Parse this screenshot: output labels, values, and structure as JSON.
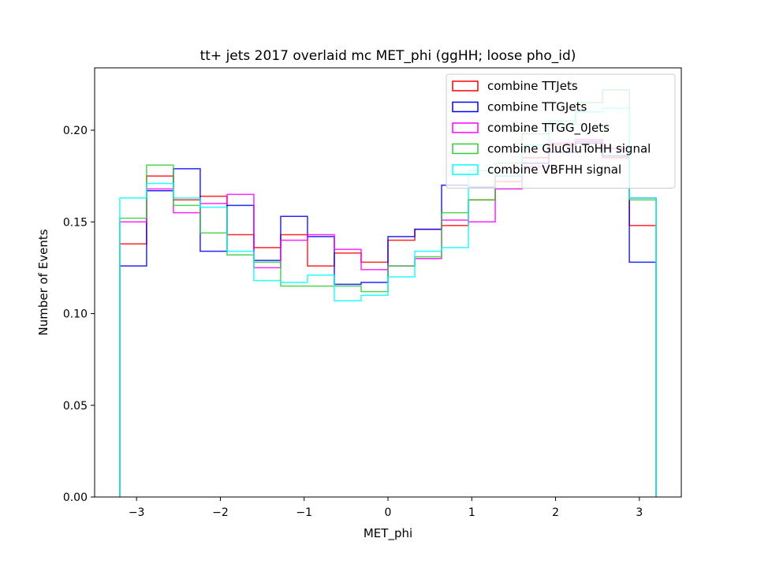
{
  "chart_data": {
    "type": "step-histogram",
    "title": "tt+ jets 2017 overlaid mc MET_phi (ggHH; loose pho_id)",
    "xlabel": "MET_phi",
    "ylabel": "Number of Events",
    "xlim": [
      -3.5,
      3.5
    ],
    "ylim": [
      0.0,
      0.234
    ],
    "xticks": [
      -3,
      -2,
      -1,
      0,
      1,
      2,
      3
    ],
    "xtick_labels": [
      "−3",
      "−2",
      "−1",
      "0",
      "1",
      "2",
      "3"
    ],
    "yticks": [
      0.0,
      0.05,
      0.1,
      0.15,
      0.2
    ],
    "ytick_labels": [
      "0.00",
      "0.05",
      "0.10",
      "0.15",
      "0.20"
    ],
    "bin_edges": [
      -3.2,
      -2.88,
      -2.56,
      -2.24,
      -1.92,
      -1.6,
      -1.28,
      -0.96,
      -0.64,
      -0.32,
      0.0,
      0.32,
      0.64,
      0.96,
      1.28,
      1.6,
      1.92,
      2.24,
      2.56,
      2.88,
      3.2
    ],
    "legend_position": "upper right",
    "series": [
      {
        "name": "combine TTJets",
        "color": "#ff0000",
        "values": [
          0.138,
          0.175,
          0.162,
          0.164,
          0.143,
          0.136,
          0.143,
          0.126,
          0.133,
          0.128,
          0.14,
          0.146,
          0.148,
          0.162,
          0.172,
          0.185,
          0.192,
          0.194,
          0.185,
          0.148
        ]
      },
      {
        "name": "combine TTGJets",
        "color": "#0000ff",
        "values": [
          0.126,
          0.167,
          0.179,
          0.134,
          0.159,
          0.129,
          0.153,
          0.142,
          0.116,
          0.117,
          0.142,
          0.146,
          0.17,
          0.169,
          0.175,
          0.182,
          0.188,
          0.193,
          0.186,
          0.128
        ]
      },
      {
        "name": "combine TTGG_0Jets",
        "color": "#ff00ff",
        "values": [
          0.15,
          0.168,
          0.155,
          0.16,
          0.165,
          0.125,
          0.14,
          0.143,
          0.135,
          0.124,
          0.126,
          0.13,
          0.151,
          0.15,
          0.168,
          0.18,
          0.193,
          0.195,
          0.19,
          0.163
        ]
      },
      {
        "name": "combine GluGluToHH signal",
        "color": "#33cc33",
        "values": [
          0.152,
          0.181,
          0.159,
          0.144,
          0.132,
          0.128,
          0.115,
          0.115,
          0.115,
          0.112,
          0.126,
          0.131,
          0.155,
          0.162,
          0.182,
          0.198,
          0.203,
          0.215,
          0.222,
          0.162
        ]
      },
      {
        "name": "combine VBFHH signal",
        "color": "#00ffff",
        "values": [
          0.163,
          0.171,
          0.163,
          0.158,
          0.134,
          0.118,
          0.117,
          0.121,
          0.107,
          0.11,
          0.12,
          0.134,
          0.136,
          0.178,
          0.175,
          0.192,
          0.205,
          0.21,
          0.212,
          0.163
        ]
      }
    ]
  }
}
